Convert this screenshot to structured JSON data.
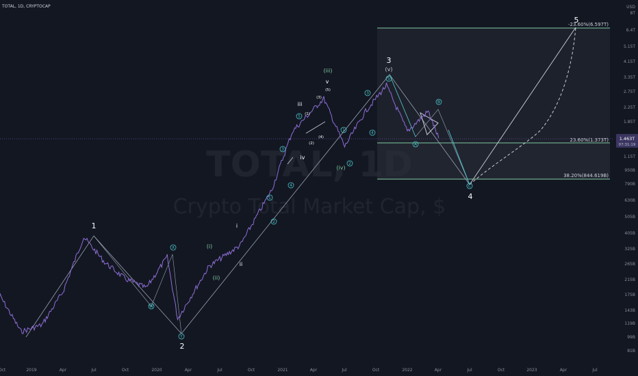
{
  "header": {
    "symbol": "TOTAL, 1D, CRYPTOCAP"
  },
  "watermark": {
    "line1": "TOTAL, 1D",
    "line2": "Crypto Total Market Cap, $"
  },
  "currency": "USD",
  "price_tag": {
    "value": "1.463T",
    "countdown": "07:31:19"
  },
  "colors": {
    "background": "#131722",
    "price_line": "#8f6fd8",
    "wave_line": "#9aa3b5",
    "fib_line": "#7fc9a0",
    "circle_label": "#4cc3c7",
    "projection": "#c8ccd6",
    "axis_text": "#8a909e"
  },
  "chart_data": {
    "type": "line",
    "title": "TOTAL, 1D, CRYPTOCAP",
    "ylabel": "USD",
    "y_scale": "log",
    "grid": false,
    "y_ticks": [
      "8T",
      "6.4T",
      "5.15T",
      "4.15T",
      "3.35T",
      "2.75T",
      "2.25T",
      "1.85T",
      "1.463T",
      "1.15T",
      "950B",
      "790B",
      "630B",
      "505B",
      "405B",
      "325B",
      "265B",
      "215B",
      "175B",
      "143B",
      "119B",
      "99B",
      "81B"
    ],
    "x_ticks": [
      "Oct",
      "2019",
      "Apr",
      "Jul",
      "Oct",
      "2020",
      "Apr",
      "Jul",
      "Oct",
      "2021",
      "Apr",
      "Jul",
      "Oct",
      "2022",
      "Apr",
      "Jul",
      "Oct",
      "2023",
      "Apr",
      "Jul"
    ],
    "price_path_approx": [
      {
        "date": "2018-10",
        "value": 170
      },
      {
        "date": "2018-12",
        "value": 105
      },
      {
        "date": "2019-02",
        "value": 115
      },
      {
        "date": "2019-04",
        "value": 180
      },
      {
        "date": "2019-06",
        "value": 380
      },
      {
        "date": "2019-08",
        "value": 270
      },
      {
        "date": "2019-10",
        "value": 215
      },
      {
        "date": "2019-12",
        "value": 190
      },
      {
        "date": "2020-02",
        "value": 290
      },
      {
        "date": "2020-03",
        "value": 125
      },
      {
        "date": "2020-06",
        "value": 255
      },
      {
        "date": "2020-09",
        "value": 340
      },
      {
        "date": "2020-12",
        "value": 720
      },
      {
        "date": "2021-02",
        "value": 1600
      },
      {
        "date": "2021-05",
        "value": 2500
      },
      {
        "date": "2021-07",
        "value": 1300
      },
      {
        "date": "2021-09",
        "value": 2100
      },
      {
        "date": "2021-11",
        "value": 2990
      },
      {
        "date": "2022-01",
        "value": 1600
      },
      {
        "date": "2022-03",
        "value": 2100
      },
      {
        "date": "2022-04",
        "value": 1460
      }
    ],
    "fib_levels": [
      {
        "label": "-23.60%(6.597T)",
        "value": 6597
      },
      {
        "label": "23.60%(1.373T)",
        "value": 1373
      },
      {
        "label": "38.20%(844.619B)",
        "value": 844.619
      }
    ],
    "wave_labels": {
      "primary": [
        "1",
        "2",
        "3",
        "4",
        "5"
      ],
      "intermediate": [
        "(iii)",
        "v",
        "iii",
        "iv",
        "i",
        "ii",
        "(i)",
        "(ii)",
        "(iv)",
        "(v)"
      ],
      "minor": [
        "(1)",
        "(2)",
        "(3)",
        "(4)",
        "(5)"
      ],
      "circled": [
        "1",
        "2",
        "3",
        "4",
        "5",
        "A",
        "B",
        "C",
        "W",
        "X",
        "Y"
      ]
    }
  }
}
